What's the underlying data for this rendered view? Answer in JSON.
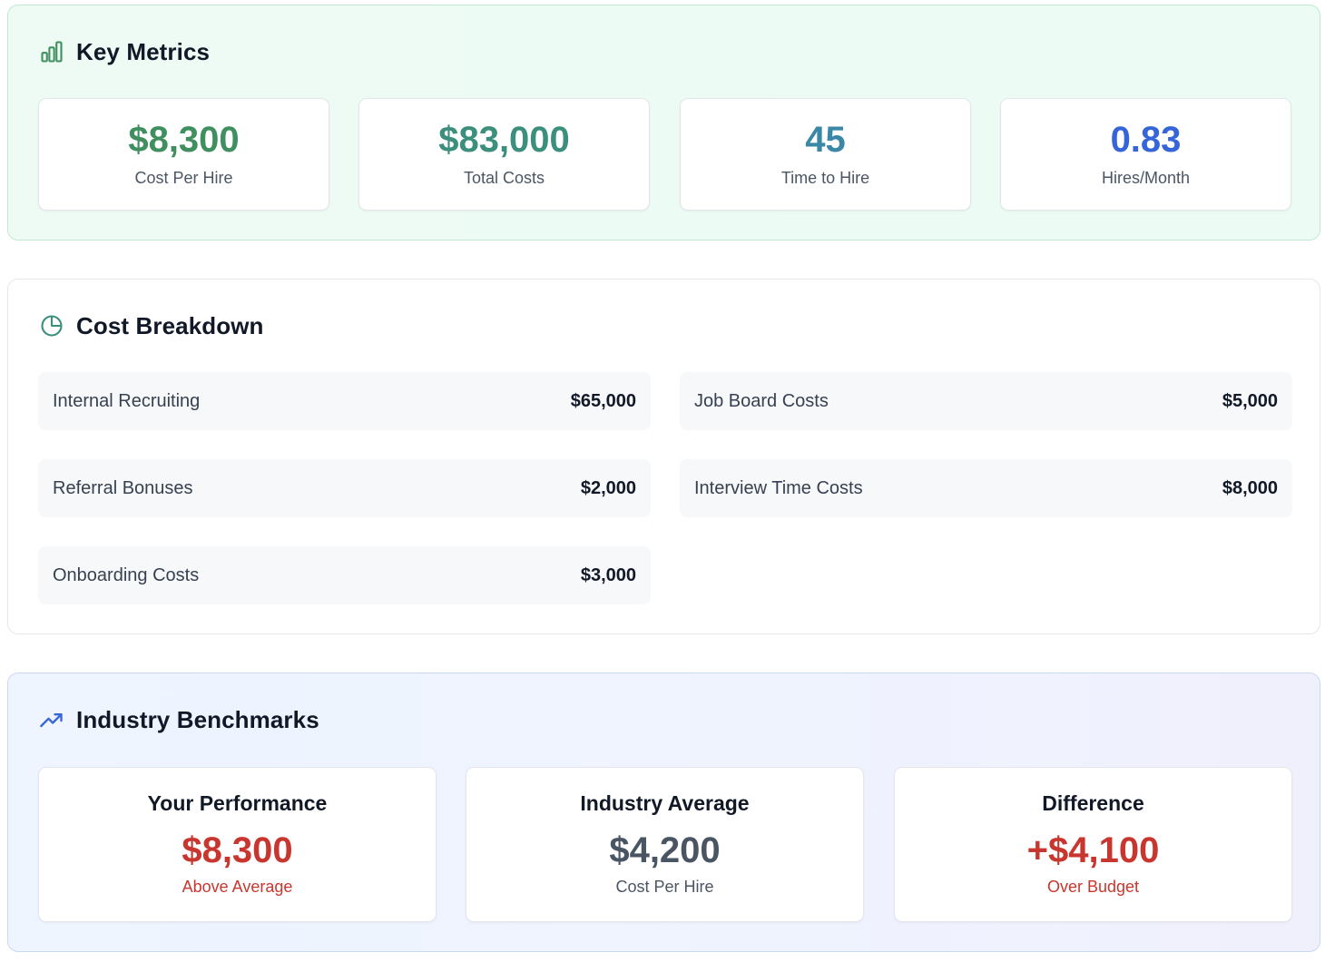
{
  "key_metrics": {
    "title": "Key Metrics",
    "icon": "bar-chart-icon",
    "cards": [
      {
        "value": "$8,300",
        "label": "Cost Per Hire",
        "color": "#3f8f5f"
      },
      {
        "value": "$83,000",
        "label": "Total Costs",
        "color": "#3c8f7c"
      },
      {
        "value": "45",
        "label": "Time to Hire",
        "color": "#3b87a8"
      },
      {
        "value": "0.83",
        "label": "Hires/Month",
        "color": "#3565d8"
      }
    ]
  },
  "cost_breakdown": {
    "title": "Cost Breakdown",
    "icon": "pie-chart-icon",
    "items": [
      {
        "name": "Internal Recruiting",
        "amount": "$65,000"
      },
      {
        "name": "Job Board Costs",
        "amount": "$5,000"
      },
      {
        "name": "Referral Bonuses",
        "amount": "$2,000"
      },
      {
        "name": "Interview Time Costs",
        "amount": "$8,000"
      },
      {
        "name": "Onboarding Costs",
        "amount": "$3,000"
      }
    ]
  },
  "benchmarks": {
    "title": "Industry Benchmarks",
    "icon": "trending-up-icon",
    "cards": [
      {
        "title": "Your Performance",
        "value": "$8,300",
        "sub": "Above Average",
        "value_color": "#c8372f",
        "sub_color": "#c8372f"
      },
      {
        "title": "Industry Average",
        "value": "$4,200",
        "sub": "Cost Per Hire",
        "value_color": "#4a5563",
        "sub_color": "#4b5563"
      },
      {
        "title": "Difference",
        "value": "+$4,100",
        "sub": "Over Budget",
        "value_color": "#c8372f",
        "sub_color": "#c8372f"
      }
    ]
  }
}
